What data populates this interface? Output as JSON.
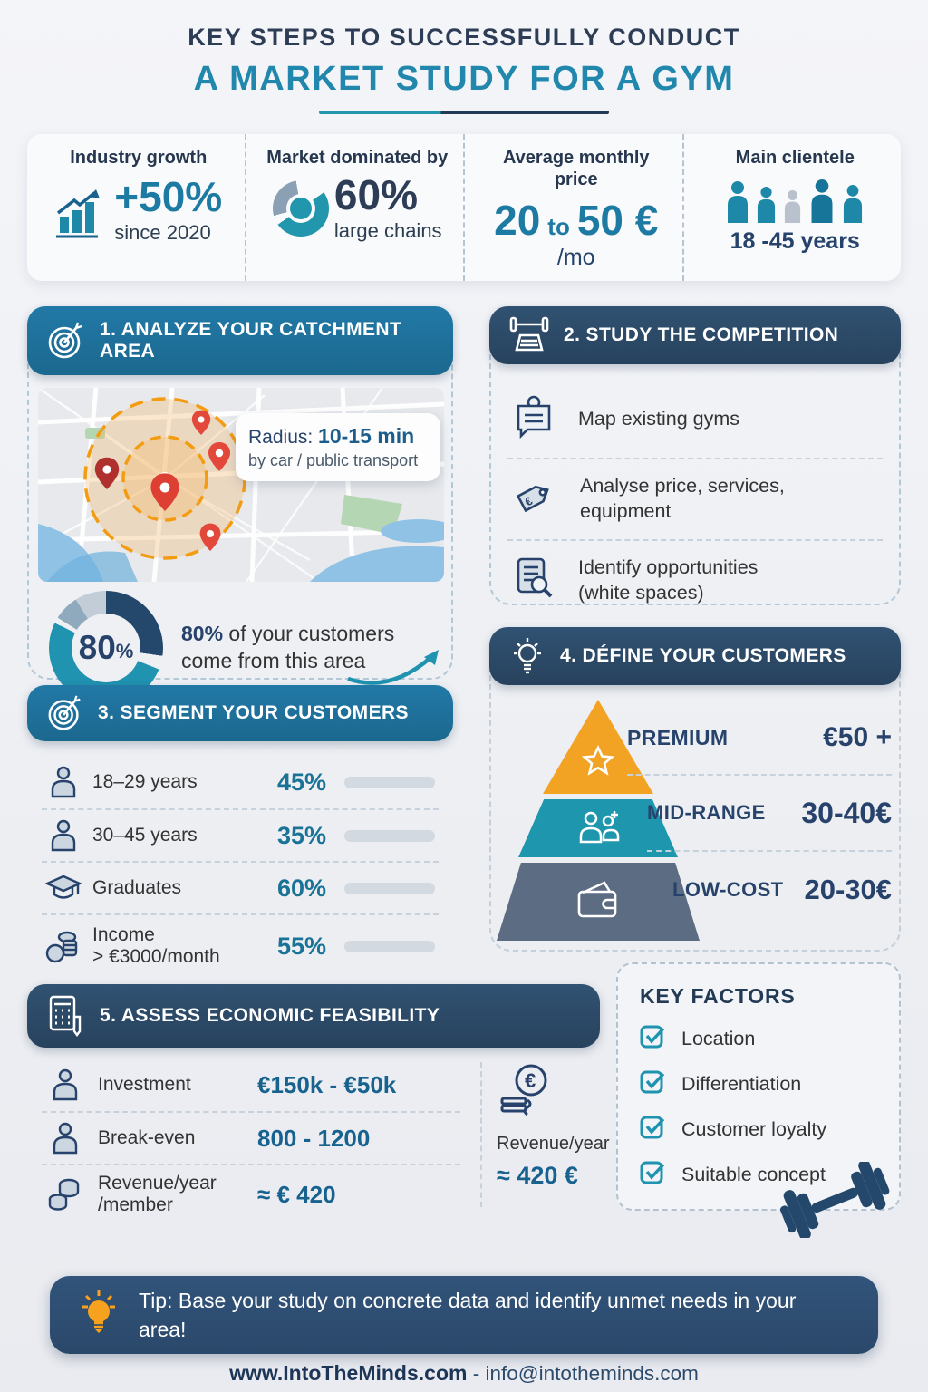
{
  "header": {
    "title_line1": "KEY STEPS TO SUCCESSFULLY CONDUCT",
    "title_line2": "A MARKET STUDY FOR A GYM"
  },
  "colors": {
    "teal_header": "#1d6f9c",
    "navy_header": "#2b4a68",
    "accent_teal": "#1f93b0",
    "accent_navy": "#24486b",
    "title_teal": "#2187ad",
    "orange": "#f2a324",
    "value_blue": "#17628e",
    "pin_red": "#e2493b"
  },
  "stats": {
    "items": [
      {
        "label": "Industry growth",
        "big": "+50%",
        "sub": "since 2020",
        "icon": "growth-chart-icon"
      },
      {
        "label": "Market dominated by",
        "big": "60%",
        "sub": "large chains",
        "icon": "donut-chart-icon"
      },
      {
        "label": "Average monthly price",
        "big_from": "20",
        "big_mid": "to",
        "big_to": "50 €",
        "sub": "/mo"
      },
      {
        "label": "Main clientele",
        "sub": "18 -45 years",
        "icon": "people-icon"
      }
    ]
  },
  "section1": {
    "title": "1. ANALYZE YOUR CATCHMENT AREA",
    "icon": "target-icon",
    "radius_label": "Radius:",
    "radius_value": "10-15 min",
    "radius_sub": "by car / public transport",
    "donut": {
      "number": "80",
      "sign": "%",
      "value": 80
    },
    "note_bold": "80%",
    "note_rest": " of your customers come from this area"
  },
  "section2": {
    "title": "2. STUDY THE COMPETITION",
    "icon": "bench-press-icon",
    "items": [
      {
        "label": "Map existing gyms",
        "label2": "",
        "icon": "chat-person-icon"
      },
      {
        "label": "Analyse price, services, equipment",
        "label2": "",
        "icon": "price-tag-icon"
      },
      {
        "label": "Identify opportunities",
        "label2": "(white spaces)",
        "icon": "document-search-icon"
      }
    ]
  },
  "section3": {
    "title": "3. SEGMENT YOUR CUSTOMERS",
    "icon": "target-icon",
    "rows": [
      {
        "label": "18–29 years",
        "label2": "",
        "value": "45%",
        "pct": 45,
        "icon": "person-icon"
      },
      {
        "label": "30–45 years",
        "label2": "",
        "value": "35%",
        "pct": 35,
        "icon": "person-icon"
      },
      {
        "label": "Graduates",
        "label2": "",
        "value": "60%",
        "pct": 60,
        "icon": "graduation-cap-icon"
      },
      {
        "label": "Income",
        "label2": "> €3000/month",
        "value": "55%",
        "pct": 55,
        "icon": "income-coins-icon"
      }
    ]
  },
  "section4": {
    "title": "4. DÉFINE YOUR CUSTOMERS",
    "icon": "lightbulb-icon",
    "tiers": [
      {
        "name": "PREMIUM",
        "price": "€50 +",
        "color": "#f2a324",
        "icon": "star-icon"
      },
      {
        "name": "MID-RANGE",
        "price": "30-40€",
        "color": "#1e96ae",
        "icon": "people-group-icon"
      },
      {
        "name": "LOW-COST",
        "price": "20-30€",
        "color": "#5c6c82",
        "icon": "wallet-icon"
      }
    ]
  },
  "section5": {
    "title": "5. ASSESS ECONOMIC FEASIBILITY",
    "icon": "calculator-icon",
    "rows": [
      {
        "label": "Investment",
        "label2": "",
        "value": "€150k - €50k",
        "icon": "person-icon"
      },
      {
        "label": "Break-even",
        "label2": "",
        "value": "800 - 1200",
        "icon": "person-icon"
      },
      {
        "label": "Revenue/year",
        "label2": "/member",
        "value": "≈ € 420",
        "icon": "coins-stack-icon"
      }
    ],
    "side": {
      "label": "Revenue/year",
      "value": "≈ 420 €",
      "icon": "euro-coin-icon"
    }
  },
  "key_factors": {
    "title": "KEY FACTORS",
    "items": [
      {
        "label": "Location",
        "icon": "checkbox-check-icon"
      },
      {
        "label": "Differentiation",
        "icon": "checkbox-check-icon"
      },
      {
        "label": "Customer loyalty",
        "icon": "checkbox-check-icon"
      },
      {
        "label": "Suitable concept",
        "icon": "checkbox-check-icon"
      }
    ]
  },
  "tip": {
    "text": "Tip: Base your study on concrete data and identify unmet needs in your area!",
    "icon": "lightbulb-icon"
  },
  "footer": {
    "site": "www.IntoTheMinds.com",
    "separator": " - ",
    "email": "info@intotheminds.com"
  }
}
